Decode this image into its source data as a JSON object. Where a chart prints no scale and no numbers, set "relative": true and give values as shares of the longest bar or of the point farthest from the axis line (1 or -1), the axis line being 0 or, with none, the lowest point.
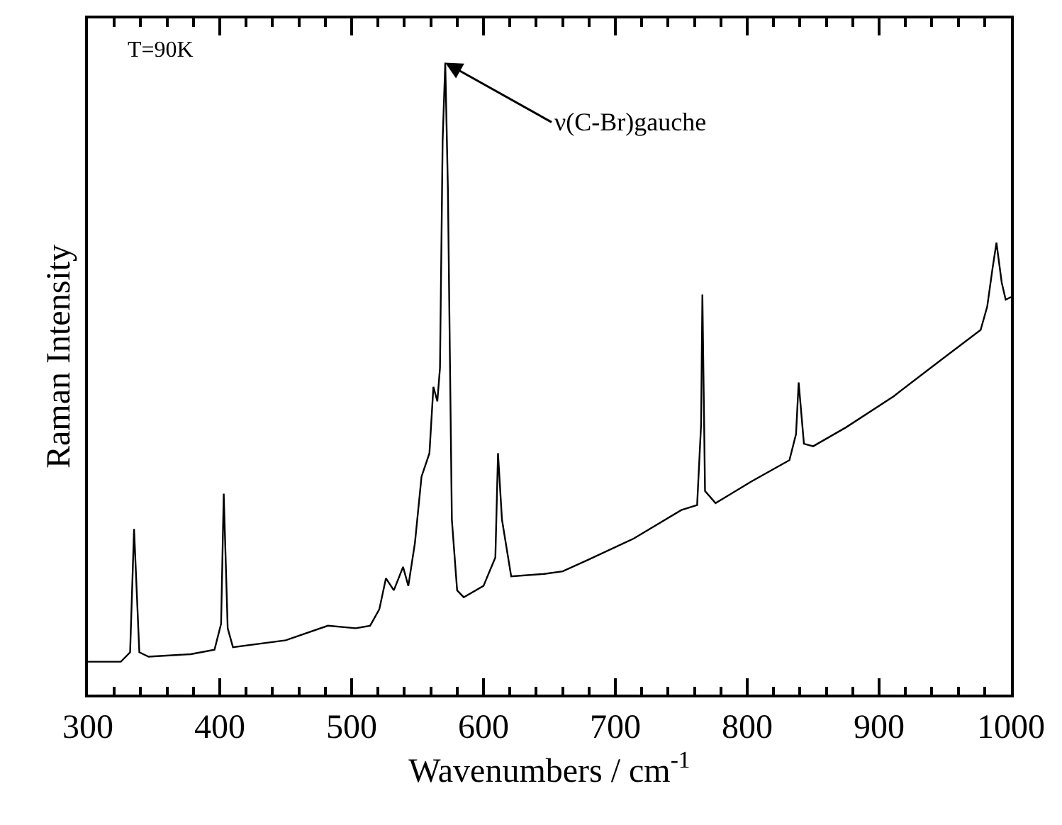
{
  "chart_data": {
    "type": "line",
    "relative": true,
    "xlabel": "Wavenumbers / cm$^{-1}$",
    "ylabel": "Raman Intensity",
    "xlim": [
      300,
      1000
    ],
    "xticks": [
      300,
      400,
      500,
      600,
      700,
      800,
      900,
      1000
    ],
    "marker": "none",
    "line_style": "solid",
    "annotations": [
      "T=90K",
      {
        "text": "ν(C-Br)gauche",
        "x": 571,
        "y": 1.0
      }
    ],
    "series": [
      {
        "color": "#000000",
        "x": [
          300,
          325,
          332,
          335,
          339,
          346,
          378,
          396,
          401,
          403,
          406,
          410,
          450,
          482,
          503,
          514,
          521,
          526,
          532,
          539,
          543,
          548,
          553,
          559,
          562,
          565,
          567,
          569,
          571,
          573,
          576,
          580,
          585,
          600,
          609,
          611,
          614,
          621,
          646,
          660,
          679,
          714,
          750,
          762,
          765,
          766,
          768,
          776,
          803,
          832,
          837,
          839,
          843,
          850,
          875,
          911,
          946,
          977,
          982,
          986,
          989,
          993,
          996,
          1000
        ],
        "values": [
          0.052,
          0.052,
          0.067,
          0.262,
          0.067,
          0.06,
          0.064,
          0.071,
          0.112,
          0.318,
          0.105,
          0.075,
          0.086,
          0.109,
          0.105,
          0.109,
          0.135,
          0.184,
          0.165,
          0.202,
          0.172,
          0.24,
          0.345,
          0.382,
          0.487,
          0.464,
          0.517,
          0.876,
          1.0,
          0.801,
          0.277,
          0.165,
          0.154,
          0.172,
          0.217,
          0.382,
          0.277,
          0.187,
          0.191,
          0.195,
          0.213,
          0.247,
          0.292,
          0.3,
          0.427,
          0.633,
          0.322,
          0.303,
          0.337,
          0.371,
          0.412,
          0.494,
          0.397,
          0.393,
          0.423,
          0.472,
          0.528,
          0.577,
          0.614,
          0.674,
          0.715,
          0.652,
          0.625,
          0.629
        ]
      }
    ]
  }
}
